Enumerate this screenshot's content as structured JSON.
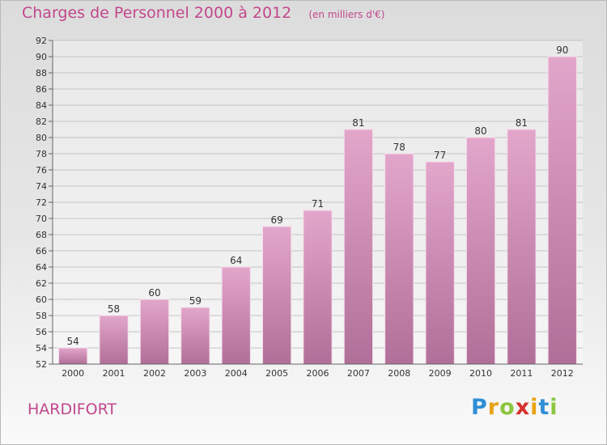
{
  "header": {
    "title": "Charges de Personnel 2000 à 2012",
    "unit": "(en milliers d'€)"
  },
  "commune": "HARDIFORT",
  "logo": {
    "letters": [
      "P",
      "r",
      "o",
      "x",
      "i",
      "t",
      "i"
    ],
    "colors": [
      "#2e8fd6",
      "#e8a314",
      "#8cc63f",
      "#d9312b",
      "#e8a314",
      "#2e8fd6",
      "#8cc63f"
    ]
  },
  "colors": {
    "bar_top": "#e3a6cb",
    "bar_bottom": "#b06f98",
    "title": "#c2478c"
  },
  "chart_data": {
    "type": "bar",
    "categories": [
      "2000",
      "2001",
      "2002",
      "2003",
      "2004",
      "2005",
      "2006",
      "2007",
      "2008",
      "2009",
      "2010",
      "2011",
      "2012"
    ],
    "values": [
      54,
      58,
      60,
      59,
      64,
      69,
      71,
      81,
      78,
      77,
      80,
      81,
      90
    ],
    "data_labels": [
      "54",
      "58",
      "60",
      "59",
      "64",
      "69",
      "71",
      "81",
      "78",
      "77",
      "80",
      "81",
      "90"
    ],
    "ylim": [
      52,
      92
    ],
    "yticks": [
      52,
      54,
      56,
      58,
      60,
      62,
      64,
      66,
      68,
      70,
      72,
      74,
      76,
      78,
      80,
      82,
      84,
      86,
      88,
      90,
      92
    ],
    "grid": true
  }
}
